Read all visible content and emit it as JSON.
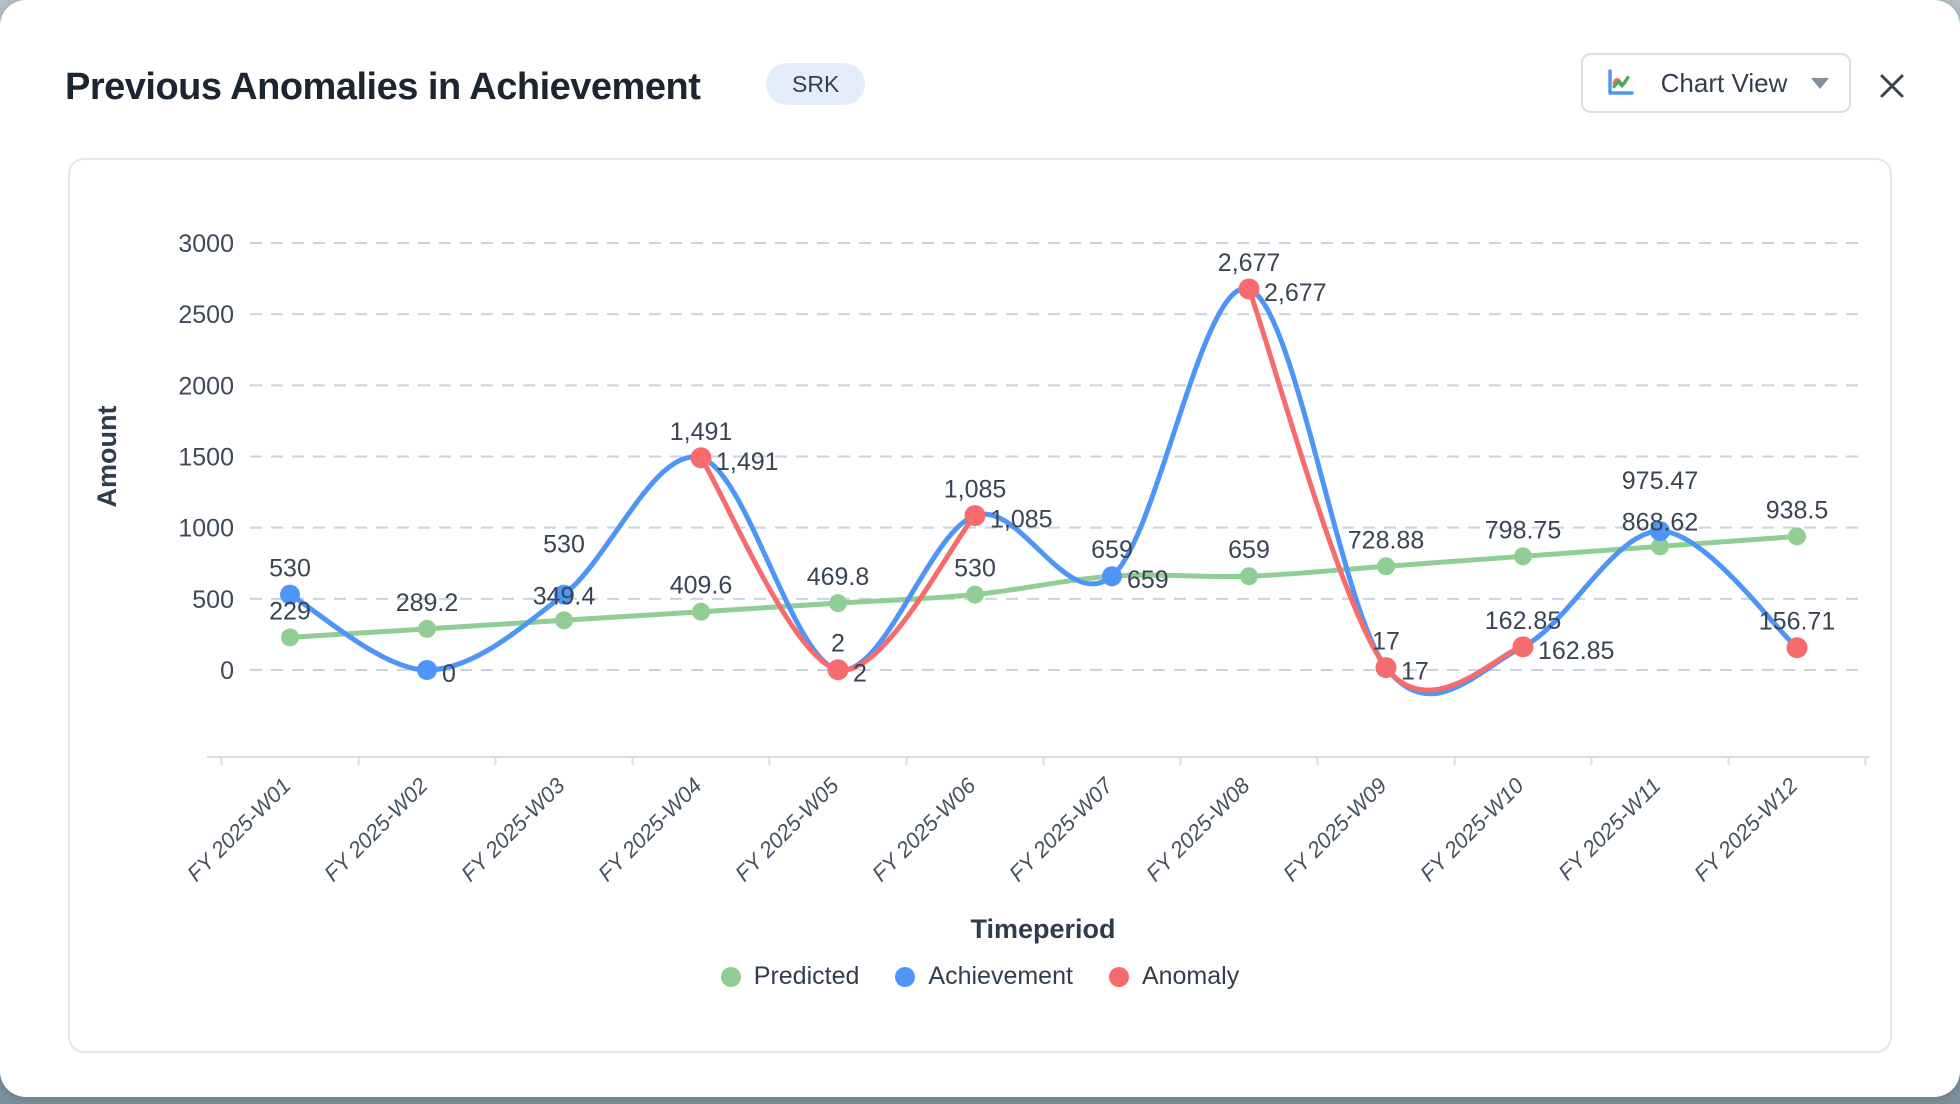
{
  "header": {
    "title": "Previous Anomalies in Achievement",
    "badge": "SRK",
    "view_button_label": "Chart View"
  },
  "chart_data": {
    "type": "line",
    "xlabel": "Timeperiod",
    "ylabel": "Amount",
    "ylim": [
      0,
      3000
    ],
    "ytick_step": 500,
    "grid": true,
    "legend_position": "bottom",
    "categories": [
      "FY 2025-W01",
      "FY 2025-W02",
      "FY 2025-W03",
      "FY 2025-W04",
      "FY 2025-W05",
      "FY 2025-W06",
      "FY 2025-W07",
      "FY 2025-W08",
      "FY 2025-W09",
      "FY 2025-W10",
      "FY 2025-W11",
      "FY 2025-W12"
    ],
    "series": [
      {
        "name": "Predicted",
        "color": "#90ce93",
        "values": [
          229,
          289.2,
          349.4,
          409.6,
          469.8,
          530,
          659,
          659,
          728.88,
          798.75,
          868.62,
          938.5
        ]
      },
      {
        "name": "Achievement",
        "color": "#4d96f8",
        "values": [
          530,
          0,
          530,
          1491,
          2,
          1085,
          659,
          2677,
          17,
          162.85,
          975.47,
          156.71
        ]
      },
      {
        "name": "Anomaly",
        "color": "#f66b6b",
        "values": [
          null,
          null,
          null,
          1491,
          2,
          1085,
          null,
          2677,
          17,
          162.85,
          null,
          156.71
        ]
      }
    ],
    "point_labels": [
      {
        "cat": 0,
        "series": "Achievement",
        "text": "530",
        "pos": "above"
      },
      {
        "cat": 0,
        "series": "Predicted",
        "text": "229",
        "pos": "above"
      },
      {
        "cat": 1,
        "series": "Predicted",
        "text": "289.2",
        "pos": "above"
      },
      {
        "cat": 1,
        "series": "Achievement",
        "text": "0",
        "pos": "right"
      },
      {
        "cat": 2,
        "series": "Achievement",
        "text": "530",
        "pos": "above"
      },
      {
        "cat": 2,
        "series": "Predicted",
        "text": "349.4",
        "pos": "above"
      },
      {
        "cat": 3,
        "series": "Anomaly",
        "text": "1,491",
        "pos": "above"
      },
      {
        "cat": 3,
        "series": "Anomaly",
        "text": "1,491",
        "pos": "right"
      },
      {
        "cat": 3,
        "series": "Predicted",
        "text": "409.6",
        "pos": "above"
      },
      {
        "cat": 4,
        "series": "Predicted",
        "text": "469.8",
        "pos": "above"
      },
      {
        "cat": 4,
        "series": "Anomaly",
        "text": "2",
        "pos": "above"
      },
      {
        "cat": 4,
        "series": "Anomaly",
        "text": "2",
        "pos": "right"
      },
      {
        "cat": 5,
        "series": "Anomaly",
        "text": "1,085",
        "pos": "above"
      },
      {
        "cat": 5,
        "series": "Anomaly",
        "text": "1,085",
        "pos": "right"
      },
      {
        "cat": 5,
        "series": "Predicted",
        "text": "530",
        "pos": "above"
      },
      {
        "cat": 6,
        "series": "Achievement",
        "text": "659",
        "pos": "above"
      },
      {
        "cat": 6,
        "series": "Achievement",
        "text": "659",
        "pos": "right"
      },
      {
        "cat": 7,
        "series": "Anomaly",
        "text": "2,677",
        "pos": "above"
      },
      {
        "cat": 7,
        "series": "Anomaly",
        "text": "2,677",
        "pos": "right"
      },
      {
        "cat": 7,
        "series": "Predicted",
        "text": "659",
        "pos": "above"
      },
      {
        "cat": 8,
        "series": "Predicted",
        "text": "728.88",
        "pos": "above"
      },
      {
        "cat": 8,
        "series": "Anomaly",
        "text": "17",
        "pos": "above"
      },
      {
        "cat": 8,
        "series": "Anomaly",
        "text": "17",
        "pos": "right"
      },
      {
        "cat": 9,
        "series": "Predicted",
        "text": "798.75",
        "pos": "above"
      },
      {
        "cat": 9,
        "series": "Anomaly",
        "text": "162.85",
        "pos": "above"
      },
      {
        "cat": 9,
        "series": "Anomaly",
        "text": "162.85",
        "pos": "right"
      },
      {
        "cat": 10,
        "series": "Achievement",
        "text": "975.47",
        "pos": "above"
      },
      {
        "cat": 10,
        "series": "Predicted",
        "text": "868.62",
        "pos": "above"
      },
      {
        "cat": 11,
        "series": "Predicted",
        "text": "938.5",
        "pos": "above"
      },
      {
        "cat": 11,
        "series": "Anomaly",
        "text": "156.71",
        "pos": "above"
      }
    ],
    "colors": {
      "grid": "#cbd4dd",
      "axis_line": "#d9dee4",
      "tick_text": "#3e4a59",
      "category_text": "#46525f",
      "axis_title_text": "#303c4b",
      "point_label_text": "#3a4554"
    }
  }
}
